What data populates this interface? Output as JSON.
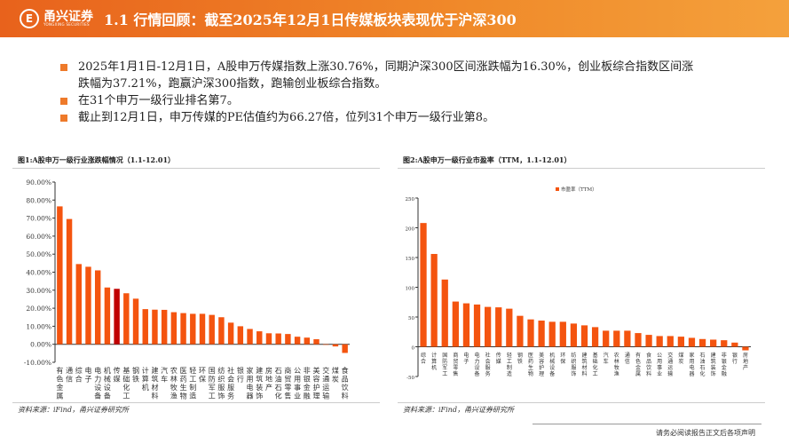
{
  "header": {
    "logo_cn": "甬兴证券",
    "logo_en": "YONGXING SECURITIES",
    "logo_mark": "E",
    "title": "1.1 行情回顾：截至2025年12月1日传媒板块表现优于沪深300"
  },
  "bullets": [
    "2025年1月1日-12月1日，A股申万传媒指数上涨30.76%，同期沪深300区间涨跌幅为16.30%，创业板综合指数区间涨跌幅为37.21%，跑赢沪深300指数，跑输创业板综合指数。",
    "在31个申万一级行业排名第7。",
    "截止到12月1日，申万传媒的PE估值约为66.27倍，位列31个申万一级行业第8。"
  ],
  "colors": {
    "bar": "#f4540f",
    "highlight": "#c00000",
    "accent": "#ee7a2a"
  },
  "chart1": {
    "title": "图1:A股申万一级行业涨跌幅情况（1.1-12.01）",
    "source": "资料来源：iFind，甬兴证券研究所"
  },
  "chart2": {
    "title": "图2:A股申万一级行业市盈率（TTM，1.1-12.01）",
    "source": "资料来源：iFind，甬兴证券研究所"
  },
  "chart_data": [
    {
      "type": "bar",
      "title": "图1:A股申万一级行业涨跌幅情况（1.1-12.01）",
      "ylim": [
        -10,
        90
      ],
      "yticks": [
        "-10.00%",
        "0.00%",
        "10.00%",
        "20.00%",
        "30.00%",
        "40.00%",
        "50.00%",
        "60.00%",
        "70.00%",
        "80.00%",
        "90.00%"
      ],
      "unit": "%",
      "highlight": "传媒",
      "categories": [
        "有色金属",
        "通信",
        "综合",
        "电子",
        "电力设备",
        "机械设备",
        "传媒",
        "基础化工",
        "钢铁",
        "计算机",
        "建筑材料",
        "汽车",
        "农林牧渔",
        "医药生物",
        "轻工制造",
        "环保",
        "国防军工",
        "纺织服饰",
        "社会服务",
        "银行",
        "家用电器",
        "建筑装饰",
        "房地产",
        "石油石化",
        "商贸零售",
        "公用事业",
        "非银金融",
        "美容护理",
        "交通运输",
        "煤炭",
        "食品饮料"
      ],
      "values": [
        76.5,
        69.5,
        44.5,
        43,
        41,
        31.5,
        30.76,
        28.3,
        25.3,
        19.5,
        19.2,
        19.1,
        17.8,
        17.3,
        16.9,
        16.9,
        16.3,
        15,
        12,
        10,
        8.5,
        7.2,
        6.1,
        6,
        5.7,
        4.2,
        3.7,
        2.8,
        -0.3,
        -1.2,
        -4.8
      ]
    },
    {
      "type": "bar",
      "title": "图2:A股申万一级行业市盈率（TTM，1.1-12.01）",
      "ylim": [
        -50,
        250
      ],
      "yticks": [
        "-50",
        "0",
        "50",
        "100",
        "150",
        "200",
        "250"
      ],
      "legend": "市盈率（TTM）",
      "legend_position": "top",
      "categories": [
        "综合",
        "计算机",
        "国防军工",
        "商贸零售",
        "电子",
        "电力设备",
        "社会服务",
        "传媒",
        "轻工制造",
        "钢铁",
        "医药生物",
        "美容护理",
        "机械设备",
        "环保",
        "纺织服饰",
        "建筑材料",
        "基础化工",
        "汽车",
        "农林牧渔",
        "通信",
        "有色金属",
        "食品饮料",
        "公用事业",
        "交通运输",
        "煤炭",
        "家用电器",
        "石油石化",
        "建筑装饰",
        "非银金融",
        "银行",
        "房地产"
      ],
      "values": [
        208,
        156,
        113,
        76,
        73,
        71,
        67,
        66.27,
        64,
        52,
        46,
        44,
        42,
        42,
        39,
        36,
        33,
        27,
        27,
        27,
        23,
        20,
        18,
        18,
        17,
        15,
        13,
        12,
        11,
        7,
        -6
      ]
    }
  ],
  "footer": "请务必阅读报告正文后各项声明"
}
